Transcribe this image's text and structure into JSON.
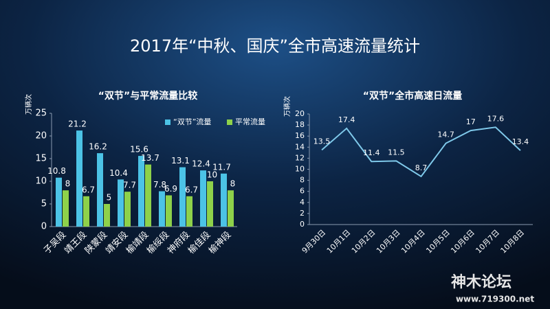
{
  "title": "2017年“中秋、国庆”全市高速流量统计",
  "chart_data": [
    {
      "type": "bar",
      "title": "“双节”与平常流量比较",
      "y_label": "万辆次",
      "categories": [
        "子吴段",
        "靖王段",
        "陕蒙段",
        "靖安段",
        "榆靖段",
        "榆绥段",
        "神府段",
        "榆佳段",
        "榆神段"
      ],
      "series": [
        {
          "name": "“双节”流量",
          "color": "#4cc3e6",
          "values": [
            10.8,
            21.2,
            16.2,
            10.4,
            15.6,
            7.8,
            13.1,
            12.4,
            11.7
          ]
        },
        {
          "name": "平常流量",
          "color": "#8ed14a",
          "values": [
            8,
            6.7,
            5,
            7.7,
            13.7,
            6.9,
            6.7,
            10,
            8
          ]
        }
      ],
      "ylim": [
        0,
        25
      ],
      "yticks": [
        0,
        5,
        10,
        15,
        20,
        25
      ]
    },
    {
      "type": "line",
      "title": "“双节”全市高速日流量",
      "y_label": "万辆次",
      "categories": [
        "9月30日",
        "10月1日",
        "10月2日",
        "10月3日",
        "10月4日",
        "10月5日",
        "10月6日",
        "10月7日",
        "10月8日"
      ],
      "values": [
        13.5,
        17.4,
        11.4,
        11.5,
        8.7,
        14.7,
        17,
        17.6,
        13.4
      ],
      "color": "#7fc9ea",
      "ylim": [
        0,
        20
      ],
      "yticks": [
        0,
        2,
        4,
        6,
        8,
        10,
        12,
        14,
        16,
        18,
        20
      ]
    }
  ],
  "watermark": {
    "name": "神木论坛",
    "url": "www.719300.net"
  }
}
